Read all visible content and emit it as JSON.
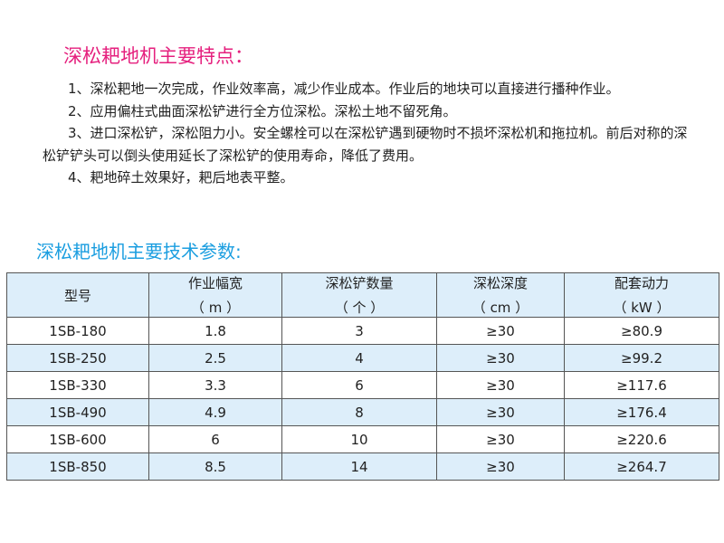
{
  "features": {
    "title": "深松耙地机主要特点：",
    "items": [
      "1、深松耙地一次完成，作业效率高，减少作业成本。作业后的地块可以直接进行播种作业。",
      "2、应用偏柱式曲面深松铲进行全方位深松。深松土地不留死角。",
      "3、进口深松铲，深松阻力小。安全螺栓可以在深松铲遇到硬物时不损坏深松机和拖拉机。前后对称的深松铲铲头可以倒头使用延长了深松铲的使用寿命，降低了费用。",
      "4、耙地碎土效果好，耙后地表平整。"
    ]
  },
  "specs": {
    "title": "深松耙地机主要技术参数:",
    "headers": [
      {
        "label": "型号",
        "unit": ""
      },
      {
        "label": "作业幅宽",
        "unit": "（ m ）"
      },
      {
        "label": "深松铲数量",
        "unit": "（ 个 ）"
      },
      {
        "label": "深松深度",
        "unit": "（ cm ）"
      },
      {
        "label": "配套动力",
        "unit": "（ kW ）"
      }
    ],
    "rows": [
      [
        "1SB-180",
        "1.8",
        "3",
        "≥30",
        "≥80.9"
      ],
      [
        "1SB-250",
        "2.5",
        "4",
        "≥30",
        "≥99.2"
      ],
      [
        "1SB-330",
        "3.3",
        "6",
        "≥30",
        "≥117.6"
      ],
      [
        "1SB-490",
        "4.9",
        "8",
        "≥30",
        "≥176.4"
      ],
      [
        "1SB-600",
        "6",
        "10",
        "≥30",
        "≥220.6"
      ],
      [
        "1SB-850",
        "8.5",
        "14",
        "≥30",
        "≥264.7"
      ]
    ]
  },
  "colors": {
    "title_pink": "#e5207e",
    "title_blue": "#1b9ee0",
    "table_fill": "#ddeefa"
  }
}
